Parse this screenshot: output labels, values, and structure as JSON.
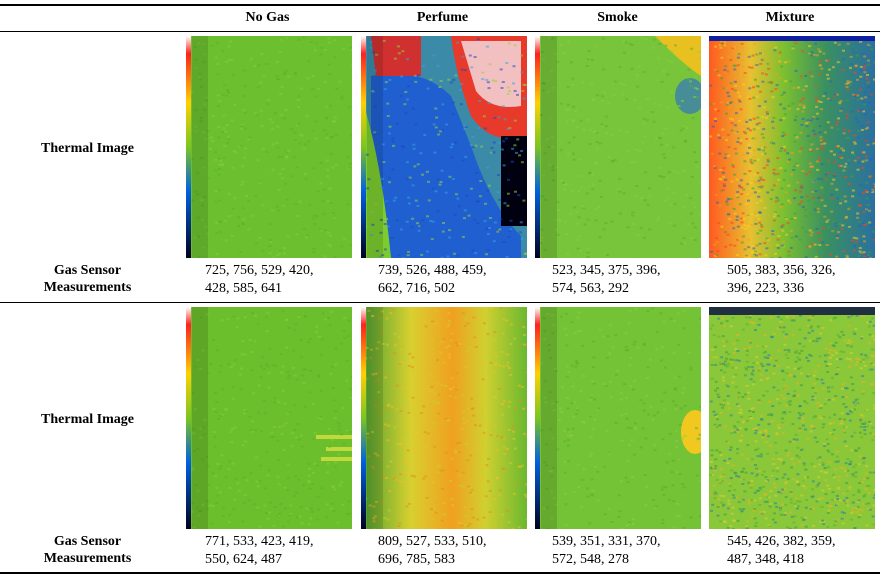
{
  "columns": [
    "No Gas",
    "Perfume",
    "Smoke",
    "Mixture"
  ],
  "row_labels": {
    "thermal": "Thermal Image",
    "sensor_line1": "Gas Sensor",
    "sensor_line2": "Measurements"
  },
  "rows": [
    {
      "measurements": [
        [
          "725, 756, 529, 420,",
          "428, 585, 641"
        ],
        [
          "739, 526, 488, 459,",
          "662, 716, 502"
        ],
        [
          "523, 345, 375, 396,",
          "574, 563, 292"
        ],
        [
          "505, 383, 356, 326,",
          "396, 223, 336"
        ]
      ]
    },
    {
      "measurements": [
        [
          "771, 533, 423, 419,",
          "550, 624, 487"
        ],
        [
          "809, 527, 533, 510,",
          "696, 785, 583"
        ],
        [
          "539, 351, 331, 370,",
          "572, 548, 278"
        ],
        [
          "545, 426, 382, 359,",
          "487, 348, 418"
        ]
      ]
    }
  ]
}
